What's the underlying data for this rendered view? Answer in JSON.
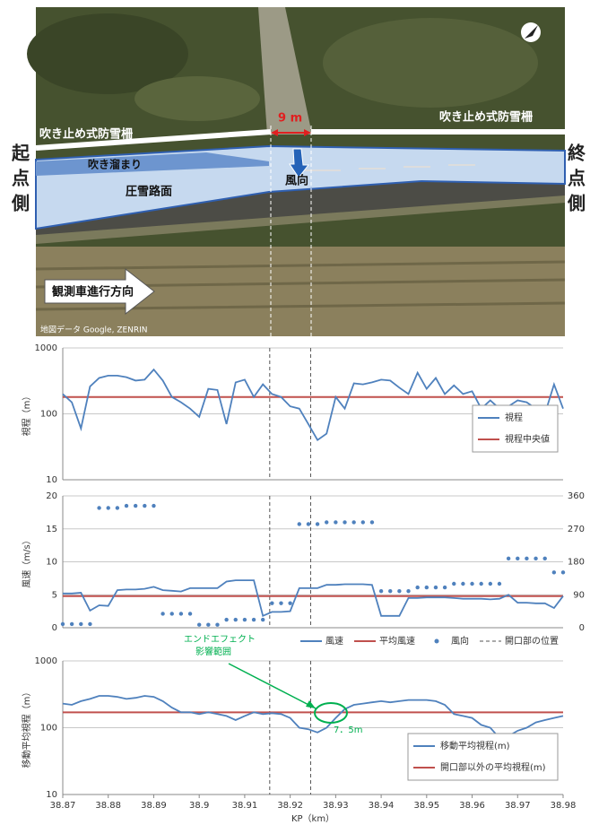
{
  "photo": {
    "left_side": "起点側",
    "right_side": "終点側",
    "fence_left": "吹き止め式防雪柵",
    "fence_right": "吹き止め式防雪柵",
    "gap": "9 m",
    "drift": "吹き溜まり",
    "wind_direction": "風向",
    "road": "圧雪路面",
    "travel_direction": "観測車進行方向",
    "credit": "地図データ Google, ZENRIN"
  },
  "chart_data": [
    {
      "type": "line",
      "y_label": "視程（m）",
      "log_scale": true,
      "grid": true,
      "legend": "right",
      "xlim": [
        38.87,
        38.98
      ],
      "ylim": [
        10,
        1000
      ],
      "yticks": [
        10,
        100,
        1000
      ],
      "x": [
        38.87,
        38.872,
        38.874,
        38.876,
        38.878,
        38.88,
        38.882,
        38.884,
        38.886,
        38.888,
        38.89,
        38.892,
        38.894,
        38.896,
        38.898,
        38.9,
        38.902,
        38.904,
        38.906,
        38.908,
        38.91,
        38.912,
        38.914,
        38.916,
        38.918,
        38.92,
        38.922,
        38.924,
        38.926,
        38.928,
        38.93,
        38.932,
        38.934,
        38.936,
        38.938,
        38.94,
        38.942,
        38.944,
        38.946,
        38.948,
        38.95,
        38.952,
        38.954,
        38.956,
        38.958,
        38.96,
        38.962,
        38.964,
        38.966,
        38.968,
        38.97,
        38.972,
        38.974,
        38.976,
        38.978,
        38.98
      ],
      "series": [
        {
          "name": "視程",
          "color": "#4f81bd",
          "values": [
            200,
            150,
            60,
            260,
            350,
            380,
            380,
            360,
            320,
            330,
            470,
            320,
            180,
            150,
            120,
            90,
            240,
            230,
            70,
            300,
            330,
            180,
            280,
            200,
            180,
            130,
            120,
            70,
            40,
            50,
            180,
            120,
            290,
            280,
            300,
            330,
            320,
            250,
            200,
            420,
            240,
            350,
            200,
            270,
            200,
            220,
            120,
            160,
            120,
            130,
            160,
            150,
            120,
            100,
            280,
            120
          ]
        }
      ],
      "hlines": [
        {
          "name": "視程中央値",
          "color": "#c0504d",
          "value": 180
        }
      ],
      "openings": {
        "x": [
          38.9155,
          38.9245
        ]
      }
    },
    {
      "type": "line",
      "y_label": "風速（m/s）",
      "log_scale": false,
      "grid": true,
      "legend": "bottom",
      "xlim": [
        38.87,
        38.98
      ],
      "ylim": [
        0,
        20
      ],
      "yticks": [
        0,
        5,
        10,
        15,
        20
      ],
      "y2lim": [
        0,
        360
      ],
      "y2ticks": [
        0,
        90,
        180,
        270,
        360
      ],
      "x": [
        38.87,
        38.872,
        38.874,
        38.876,
        38.878,
        38.88,
        38.882,
        38.884,
        38.886,
        38.888,
        38.89,
        38.892,
        38.894,
        38.896,
        38.898,
        38.9,
        38.902,
        38.904,
        38.906,
        38.908,
        38.91,
        38.912,
        38.914,
        38.916,
        38.918,
        38.92,
        38.922,
        38.924,
        38.926,
        38.928,
        38.93,
        38.932,
        38.934,
        38.936,
        38.938,
        38.94,
        38.942,
        38.944,
        38.946,
        38.948,
        38.95,
        38.952,
        38.954,
        38.956,
        38.958,
        38.96,
        38.962,
        38.964,
        38.966,
        38.968,
        38.97,
        38.972,
        38.974,
        38.976,
        38.978,
        38.98
      ],
      "series": [
        {
          "name": "風速",
          "color": "#4f81bd",
          "values": [
            5.2,
            5.2,
            5.3,
            2.6,
            3.4,
            3.3,
            5.7,
            5.8,
            5.8,
            5.9,
            6.2,
            5.7,
            5.6,
            5.5,
            6.0,
            6.0,
            6.0,
            6.0,
            7.0,
            7.2,
            7.2,
            7.2,
            1.8,
            2.4,
            2.4,
            2.5,
            6.0,
            6.0,
            6.0,
            6.5,
            6.5,
            6.6,
            6.6,
            6.6,
            6.5,
            1.8,
            1.8,
            1.8,
            4.5,
            4.5,
            4.6,
            4.6,
            4.6,
            4.5,
            4.4,
            4.4,
            4.4,
            4.3,
            4.4,
            5.0,
            3.8,
            3.8,
            3.7,
            3.7,
            3.0,
            4.8
          ]
        },
        {
          "name": "風向",
          "color": "#4f81bd",
          "axis": "y2",
          "style": "dots",
          "values": [
            10,
            10,
            10,
            10,
            327,
            327,
            327,
            333,
            333,
            333,
            333,
            38,
            38,
            38,
            38,
            8,
            8,
            8,
            22,
            22,
            22,
            22,
            22,
            67,
            67,
            67,
            283,
            283,
            283,
            288,
            288,
            288,
            288,
            288,
            288,
            100,
            100,
            100,
            100,
            110,
            110,
            110,
            110,
            120,
            120,
            120,
            120,
            120,
            120,
            189,
            189,
            189,
            189,
            189,
            151,
            151
          ]
        }
      ],
      "hlines": [
        {
          "name": "平均風速",
          "color": "#c0504d",
          "value": 4.8
        }
      ],
      "openings": {
        "name": "開口部の位置",
        "x": [
          38.9155,
          38.9245
        ]
      }
    },
    {
      "type": "line",
      "y_label": "移動平均視程（m）",
      "x_label": "KP（km）",
      "log_scale": true,
      "grid": true,
      "legend": "right",
      "xlim": [
        38.87,
        38.98
      ],
      "xticks": [
        38.87,
        38.88,
        38.89,
        38.9,
        38.91,
        38.92,
        38.93,
        38.94,
        38.95,
        38.96,
        38.97,
        38.98
      ],
      "ylim": [
        10,
        1000
      ],
      "yticks": [
        10,
        100,
        1000
      ],
      "x": [
        38.87,
        38.872,
        38.874,
        38.876,
        38.878,
        38.88,
        38.882,
        38.884,
        38.886,
        38.888,
        38.89,
        38.892,
        38.894,
        38.896,
        38.898,
        38.9,
        38.902,
        38.904,
        38.906,
        38.908,
        38.91,
        38.912,
        38.914,
        38.916,
        38.918,
        38.92,
        38.922,
        38.924,
        38.926,
        38.928,
        38.93,
        38.932,
        38.934,
        38.936,
        38.938,
        38.94,
        38.942,
        38.944,
        38.946,
        38.948,
        38.95,
        38.952,
        38.954,
        38.956,
        38.958,
        38.96,
        38.962,
        38.964,
        38.966,
        38.968,
        38.97,
        38.972,
        38.974,
        38.976,
        38.978,
        38.98
      ],
      "series": [
        {
          "name": "移動平均視程(m)",
          "color": "#4f81bd",
          "values": [
            230,
            220,
            250,
            270,
            300,
            300,
            290,
            270,
            280,
            300,
            290,
            250,
            200,
            170,
            170,
            160,
            170,
            160,
            150,
            130,
            150,
            170,
            160,
            165,
            160,
            140,
            100,
            95,
            85,
            100,
            140,
            190,
            220,
            230,
            240,
            250,
            240,
            250,
            260,
            260,
            260,
            250,
            220,
            160,
            150,
            140,
            110,
            100,
            70,
            75,
            90,
            100,
            120,
            130,
            140,
            150
          ]
        }
      ],
      "hlines": [
        {
          "name": "開口部以外の平均視程(m)",
          "color": "#c0504d",
          "value": 170
        }
      ],
      "openings": {
        "x": [
          38.9155,
          38.9245
        ]
      },
      "annotations": [
        "エンドエフェクト",
        "影響範囲",
        "7．5m"
      ]
    }
  ]
}
